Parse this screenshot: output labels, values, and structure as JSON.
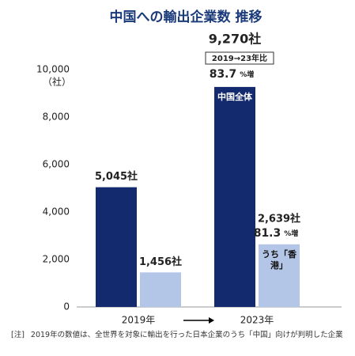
{
  "chart_data": {
    "type": "bar",
    "title": "中国への輸出企業数  推移",
    "y_unit": "（社）",
    "categories": [
      "2019年",
      "2023年"
    ],
    "series": [
      {
        "name": "中国全体",
        "color": "#132b6e",
        "values": [
          5045,
          9270
        ],
        "value_labels": [
          "5,045社",
          "9,270社"
        ]
      },
      {
        "name": "うち「香港」",
        "color": "#b4c6e7",
        "values": [
          1456,
          2639
        ],
        "value_labels": [
          "1,456社",
          "2,639社"
        ]
      }
    ],
    "ylim": [
      0,
      10000
    ],
    "yticks": [
      0,
      {
        "value": 2000,
        "label": "2,000"
      },
      {
        "value": 4000,
        "label": "4,000"
      },
      {
        "value": 6000,
        "label": "6,000"
      },
      {
        "value": 8000,
        "label": "8,000"
      },
      {
        "value": 10000,
        "label": "10,000"
      }
    ],
    "annotations": [
      {
        "text": "2019→23年比"
      },
      {
        "value": 83.7,
        "unit": "%増"
      },
      {
        "value": 81.3,
        "unit": "%増"
      }
    ],
    "note": {
      "marker": "[注]",
      "text": "2019年の数値は、全世界を対象に輸出を行った日本企業のうち「中国」向けが判明した企業"
    }
  }
}
